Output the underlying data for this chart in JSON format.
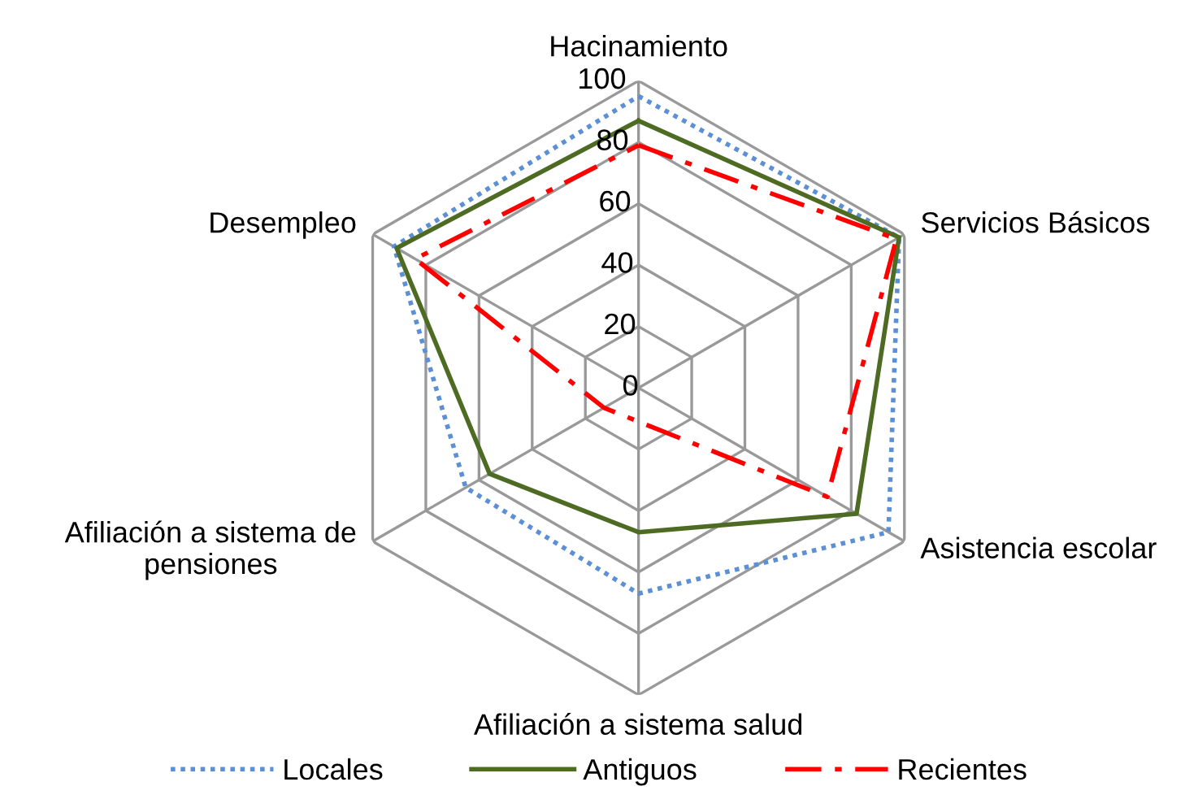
{
  "chart_data": {
    "type": "radar",
    "categories": [
      "Hacinamiento",
      "Servicios Básicos",
      "Asistencia escolar",
      "Afiliación a sistema salud",
      "Afiliación a sistema de\npensiones",
      "Desempleo"
    ],
    "series": [
      {
        "name": "Locales",
        "color": "#5b8fd6",
        "line_style": "dotted",
        "values": [
          95,
          98,
          94,
          67,
          65,
          92
        ]
      },
      {
        "name": "Antiguos",
        "color": "#4e6b23",
        "line_style": "solid",
        "values": [
          87,
          98,
          82,
          47,
          56,
          91
        ]
      },
      {
        "name": "Recientes",
        "color": "#ff0000",
        "line_style": "dashdot",
        "values": [
          79,
          97,
          71,
          11,
          13,
          84
        ]
      }
    ],
    "ylim": [
      0,
      100
    ],
    "yticks": [
      0,
      20,
      40,
      60,
      80,
      100
    ],
    "grid": true,
    "legend": "bottom"
  }
}
